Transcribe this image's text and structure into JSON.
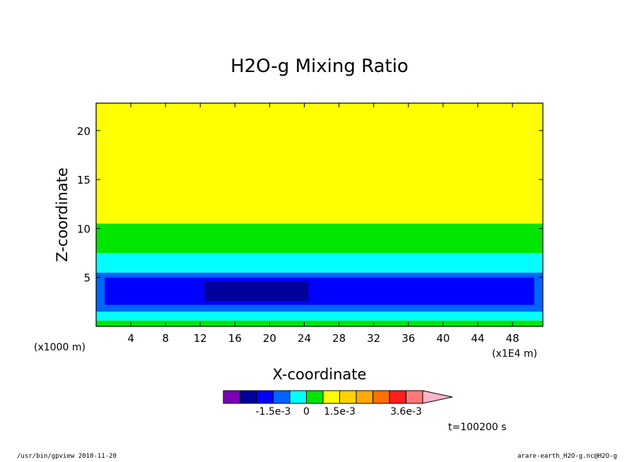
{
  "chart_data": {
    "type": "heatmap",
    "title": "H2O-g Mixing Ratio",
    "xlabel": "X-coordinate",
    "ylabel": "Z-coordinate",
    "x_unit": "(x1000 m)",
    "x_unit2": "(x1E4 m)",
    "xlim": [
      0,
      51.5
    ],
    "ylim": [
      0,
      22.8
    ],
    "x_ticks": [
      4,
      8,
      12,
      16,
      20,
      24,
      28,
      32,
      36,
      40,
      44,
      48
    ],
    "y_ticks": [
      5,
      10,
      15,
      20
    ],
    "grid": false,
    "colorbar": {
      "colors": [
        "#7a00b4",
        "#00009a",
        "#0000ff",
        "#0064ff",
        "#00ffff",
        "#00e600",
        "#ffff00",
        "#ffd200",
        "#ffaa00",
        "#ff6e00",
        "#ff1e1e",
        "#ff7878",
        "#ffb4c8"
      ],
      "tick_labels": [
        "-1.5e-3",
        "0",
        "1.5e-3",
        "3.6e-3"
      ]
    },
    "layers": [
      {
        "z_from": 0.0,
        "z_to": 0.6,
        "color": "#00e600"
      },
      {
        "z_from": 0.6,
        "z_to": 1.5,
        "color": "#00ffff"
      },
      {
        "z_from": 1.5,
        "z_to": 5.5,
        "color": "#0064ff"
      },
      {
        "z_from": 5.5,
        "z_to": 7.5,
        "color": "#00ffff"
      },
      {
        "z_from": 7.5,
        "z_to": 10.5,
        "color": "#00e600"
      },
      {
        "z_from": 10.5,
        "z_to": 22.8,
        "color": "#ffff00"
      }
    ],
    "time_label": "t=100200 s"
  },
  "footer": {
    "left": "/usr/bin/gpview  2010-11-20",
    "right": "arare-earth_H2O-g.nc@H2O-g"
  }
}
